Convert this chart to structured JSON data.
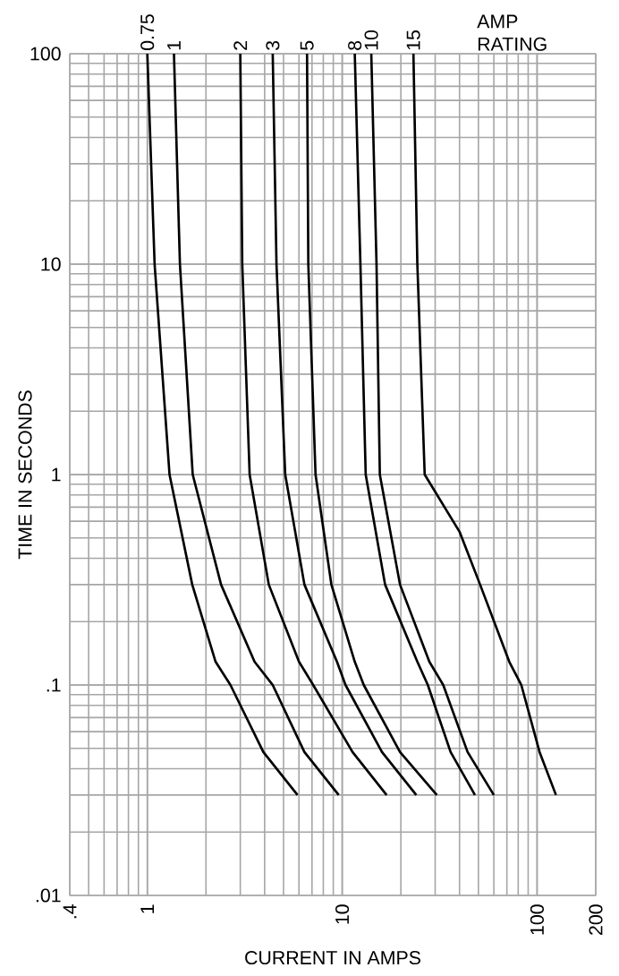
{
  "chart_data": {
    "type": "line",
    "xlabel": "CURRENT IN AMPS",
    "ylabel": "TIME IN SECONDS",
    "log": "xy",
    "grid": true,
    "marker": "none",
    "line_style": "solid",
    "xlim": [
      0.4,
      200
    ],
    "ylim": [
      0.01,
      100
    ],
    "xticks": [
      {
        "value": 0.4,
        "label": ".4"
      },
      1,
      10,
      100,
      200
    ],
    "yticks": [
      {
        "value": 0.01,
        "label": ".01"
      },
      {
        "value": 0.1,
        "label": ".1"
      },
      1,
      10,
      100
    ],
    "annotations": [
      "AMP RATING"
    ],
    "series": [
      {
        "name": "0.75",
        "color": "#000000",
        "x": [
          1.0,
          1.09,
          1.3,
          1.7,
          2.24,
          2.67,
          3.94,
          5.9
        ],
        "values": [
          100,
          10,
          1,
          0.3,
          0.129,
          0.1,
          0.048,
          0.03
        ]
      },
      {
        "name": "1",
        "color": "#000000",
        "x": [
          1.37,
          1.47,
          1.71,
          2.39,
          3.55,
          4.4,
          6.4,
          9.6
        ],
        "values": [
          100,
          10,
          1,
          0.3,
          0.129,
          0.1,
          0.048,
          0.03
        ]
      },
      {
        "name": "2",
        "color": "#000000",
        "x": [
          3.0,
          3.07,
          3.35,
          4.2,
          6.0,
          7.1,
          11.3,
          16.9
        ],
        "values": [
          100,
          10,
          1,
          0.3,
          0.129,
          0.1,
          0.048,
          0.03
        ]
      },
      {
        "name": "3",
        "color": "#000000",
        "x": [
          4.4,
          4.6,
          5.1,
          6.4,
          9.4,
          10.4,
          16,
          24
        ],
        "values": [
          100,
          10,
          1,
          0.3,
          0.129,
          0.1,
          0.048,
          0.03
        ]
      },
      {
        "name": "5",
        "color": "#000000",
        "x": [
          6.6,
          6.7,
          7.3,
          8.8,
          11.6,
          12.9,
          19.8,
          30.6
        ],
        "values": [
          100,
          10,
          1,
          0.3,
          0.129,
          0.1,
          0.048,
          0.03
        ]
      },
      {
        "name": "8",
        "color": "#000000",
        "x": [
          11.6,
          12.4,
          13.2,
          16.6,
          24.3,
          27.5,
          36,
          48
        ],
        "values": [
          100,
          10,
          1,
          0.3,
          0.129,
          0.1,
          0.048,
          0.03
        ]
      },
      {
        "name": "10",
        "color": "#000000",
        "x": [
          14.1,
          15.0,
          15.6,
          19.8,
          28,
          33,
          44,
          60
        ],
        "values": [
          100,
          10,
          1,
          0.3,
          0.129,
          0.1,
          0.048,
          0.03
        ]
      },
      {
        "name": "15",
        "color": "#000000",
        "x": [
          23.2,
          24.3,
          26.5,
          40,
          51,
          72,
          83,
          103,
          125
        ],
        "values": [
          100,
          10,
          1,
          0.535,
          0.3,
          0.129,
          0.1,
          0.048,
          0.03
        ]
      }
    ]
  }
}
